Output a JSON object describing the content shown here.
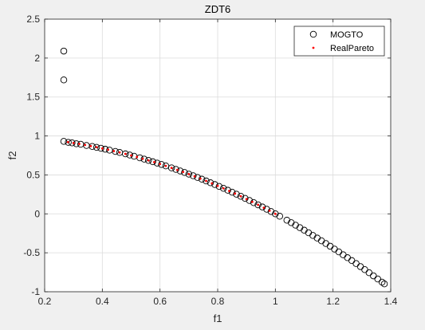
{
  "chart_data": {
    "type": "scatter",
    "title": "ZDT6",
    "xlabel": "f1",
    "ylabel": "f2",
    "xlim": [
      0.2,
      1.4
    ],
    "ylim": [
      -1,
      2.5
    ],
    "xticks": [
      "0.2",
      "0.4",
      "0.6",
      "0.8",
      "1",
      "1.2",
      "1.4"
    ],
    "yticks": [
      "-1",
      "-0.5",
      "0",
      "0.5",
      "1",
      "1.5",
      "2",
      "2.5"
    ],
    "grid": true,
    "legend_position": "top-right",
    "series": [
      {
        "name": "MOGTO",
        "marker": "circle-open",
        "color": "#000000",
        "points": [
          [
            0.2663,
            2.09
          ],
          [
            0.2663,
            1.72
          ],
          [
            0.2663,
            0.93
          ],
          [
            0.282,
            0.918
          ],
          [
            0.295,
            0.911
          ],
          [
            0.31,
            0.9
          ],
          [
            0.325,
            0.893
          ],
          [
            0.345,
            0.878
          ],
          [
            0.365,
            0.865
          ],
          [
            0.38,
            0.854
          ],
          [
            0.395,
            0.842
          ],
          [
            0.41,
            0.83
          ],
          [
            0.425,
            0.818
          ],
          [
            0.445,
            0.801
          ],
          [
            0.46,
            0.788
          ],
          [
            0.48,
            0.77
          ],
          [
            0.495,
            0.755
          ],
          [
            0.51,
            0.74
          ],
          [
            0.53,
            0.719
          ],
          [
            0.545,
            0.703
          ],
          [
            0.56,
            0.686
          ],
          [
            0.575,
            0.669
          ],
          [
            0.59,
            0.652
          ],
          [
            0.605,
            0.634
          ],
          [
            0.62,
            0.616
          ],
          [
            0.64,
            0.59
          ],
          [
            0.655,
            0.571
          ],
          [
            0.67,
            0.551
          ],
          [
            0.685,
            0.531
          ],
          [
            0.7,
            0.51
          ],
          [
            0.715,
            0.489
          ],
          [
            0.73,
            0.467
          ],
          [
            0.745,
            0.445
          ],
          [
            0.76,
            0.422
          ],
          [
            0.775,
            0.399
          ],
          [
            0.79,
            0.376
          ],
          [
            0.805,
            0.352
          ],
          [
            0.82,
            0.328
          ],
          [
            0.835,
            0.303
          ],
          [
            0.85,
            0.278
          ],
          [
            0.865,
            0.252
          ],
          [
            0.88,
            0.226
          ],
          [
            0.895,
            0.199
          ],
          [
            0.91,
            0.172
          ],
          [
            0.925,
            0.144
          ],
          [
            0.94,
            0.116
          ],
          [
            0.955,
            0.088
          ],
          [
            0.97,
            0.059
          ],
          [
            0.985,
            0.03
          ],
          [
            1.0,
            0.0
          ],
          [
            1.015,
            -0.03
          ],
          [
            1.04,
            -0.082
          ],
          [
            1.055,
            -0.113
          ],
          [
            1.07,
            -0.145
          ],
          [
            1.085,
            -0.177
          ],
          [
            1.1,
            -0.21
          ],
          [
            1.115,
            -0.243
          ],
          [
            1.13,
            -0.277
          ],
          [
            1.145,
            -0.311
          ],
          [
            1.16,
            -0.346
          ],
          [
            1.175,
            -0.381
          ],
          [
            1.19,
            -0.416
          ],
          [
            1.205,
            -0.452
          ],
          [
            1.22,
            -0.488
          ],
          [
            1.235,
            -0.525
          ],
          [
            1.25,
            -0.563
          ],
          [
            1.265,
            -0.6
          ],
          [
            1.28,
            -0.638
          ],
          [
            1.295,
            -0.677
          ],
          [
            1.31,
            -0.716
          ],
          [
            1.325,
            -0.756
          ],
          [
            1.34,
            -0.796
          ],
          [
            1.355,
            -0.836
          ],
          [
            1.37,
            -0.877
          ],
          [
            1.378,
            -0.899
          ]
        ]
      },
      {
        "name": "RealPareto",
        "marker": "dot",
        "color": "#ff0000",
        "points": [
          [
            0.281,
            0.921
          ],
          [
            0.3,
            0.91
          ],
          [
            0.32,
            0.898
          ],
          [
            0.34,
            0.884
          ],
          [
            0.36,
            0.87
          ],
          [
            0.38,
            0.856
          ],
          [
            0.4,
            0.84
          ],
          [
            0.42,
            0.824
          ],
          [
            0.44,
            0.806
          ],
          [
            0.46,
            0.788
          ],
          [
            0.48,
            0.77
          ],
          [
            0.5,
            0.75
          ],
          [
            0.52,
            0.73
          ],
          [
            0.54,
            0.708
          ],
          [
            0.56,
            0.686
          ],
          [
            0.58,
            0.664
          ],
          [
            0.6,
            0.64
          ],
          [
            0.62,
            0.616
          ],
          [
            0.64,
            0.59
          ],
          [
            0.66,
            0.564
          ],
          [
            0.68,
            0.538
          ],
          [
            0.7,
            0.51
          ],
          [
            0.72,
            0.482
          ],
          [
            0.74,
            0.452
          ],
          [
            0.76,
            0.422
          ],
          [
            0.78,
            0.392
          ],
          [
            0.8,
            0.36
          ],
          [
            0.82,
            0.328
          ],
          [
            0.84,
            0.294
          ],
          [
            0.86,
            0.26
          ],
          [
            0.88,
            0.226
          ],
          [
            0.9,
            0.19
          ],
          [
            0.92,
            0.154
          ],
          [
            0.94,
            0.116
          ],
          [
            0.96,
            0.078
          ],
          [
            0.98,
            0.04
          ],
          [
            1.0,
            0.0
          ]
        ]
      }
    ]
  }
}
